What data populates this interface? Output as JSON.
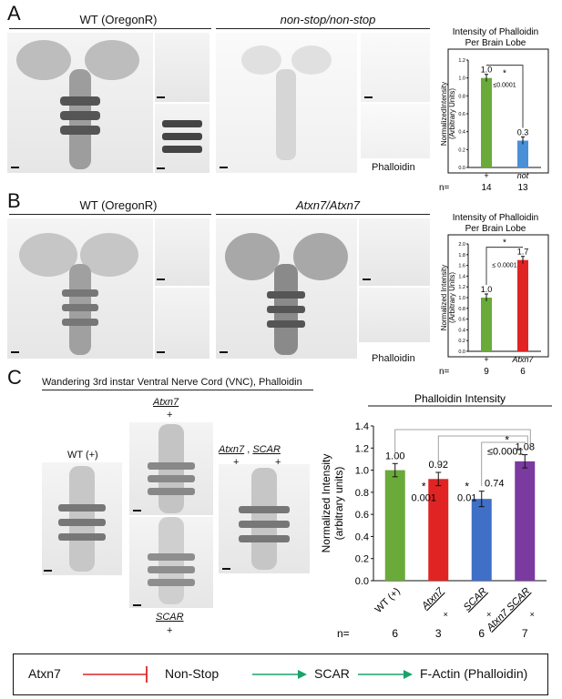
{
  "panels": {
    "A": {
      "letter": "A",
      "label_left": "WT (OregonR)",
      "label_right": "non-stop/non-stop",
      "stain": "Phalloidin"
    },
    "B": {
      "letter": "B",
      "label_left": "WT (OregonR)",
      "label_right": "Atxn7/Atxn7",
      "stain": "Phalloidin"
    },
    "C": {
      "letter": "C",
      "title": "Wandering 3rd instar Ventral Nerve Cord (VNC), Phalloidin",
      "wt_label": "WT (+)",
      "atxn7_top": "Atxn7",
      "atxn7_bottom": "+",
      "scar_top": "SCAR",
      "scar_bottom": "+",
      "double_a": "Atxn7",
      "double_comma": ",",
      "double_b": "SCAR",
      "double_a_bottom": "+",
      "double_b_bottom": "+"
    }
  },
  "legend": {
    "atxn7": "Atxn7",
    "nonstop": "Non-Stop",
    "scar": "SCAR",
    "factin": "F-Actin (Phalloidin)",
    "inhibit_color": "#e02424",
    "activate_color": "#1aa36b"
  },
  "chart_data": [
    {
      "type": "bar",
      "title_line1": "Intensity of Phalloidin",
      "title_line2": "Per Brain Lobe",
      "ylabel_line1": "NormalizedIntensity",
      "ylabel_line2": "(Arbitrary Units)",
      "ylim": [
        0,
        1.2
      ],
      "yticks": [
        "0.0",
        "0.2",
        "0.4",
        "0.6",
        "0.8",
        "1.0",
        "1.2"
      ],
      "categories": [
        "+",
        "not"
      ],
      "values": [
        1.0,
        0.3
      ],
      "value_labels": [
        "1.0",
        "0.3"
      ],
      "colors": [
        "#6aaa3a",
        "#4a90d9"
      ],
      "n_label": "n=",
      "n": [
        "14",
        "13"
      ],
      "sig_star": "*",
      "p_value": "≤0.0001"
    },
    {
      "type": "bar",
      "title_line1": "Intensity of Phalloidin",
      "title_line2": "Per Brain Lobe",
      "ylabel_line1": "Normalized Intensity",
      "ylabel_line2": "(Arbitrary Units)",
      "ylim": [
        0,
        2.0
      ],
      "yticks": [
        "0.0",
        "0.2",
        "0.4",
        "0.6",
        "0.8",
        "1.0",
        "1.2",
        "1.4",
        "1.6",
        "1.8",
        "2.0"
      ],
      "categories": [
        "+",
        "Atxn7"
      ],
      "values": [
        1.0,
        1.7
      ],
      "value_labels": [
        "1.0",
        "1.7"
      ],
      "colors": [
        "#6aaa3a",
        "#e02424"
      ],
      "n_label": "n=",
      "n": [
        "9",
        "6"
      ],
      "sig_star": "*",
      "p_value": "≤ 0.0001"
    },
    {
      "type": "bar",
      "title": "Phalloidin Intensity",
      "ylabel_line1": "Normalized Intensity",
      "ylabel_line2": "(arbitrary units)",
      "ylim": [
        0,
        1.4
      ],
      "yticks": [
        "0.0",
        "0.2",
        "0.4",
        "0.6",
        "0.8",
        "1.0",
        "1.2",
        "1.4"
      ],
      "categories": [
        "WT (+)",
        "Atxn7",
        "SCAR",
        "Atxn7 SCAR"
      ],
      "category_suffix": [
        "",
        "×",
        "×",
        "×"
      ],
      "values": [
        1.0,
        0.92,
        0.74,
        1.08
      ],
      "value_labels": [
        "1.00",
        "0.92",
        "0.74",
        "1.08"
      ],
      "colors": [
        "#6aaa3a",
        "#e02424",
        "#3f6fc6",
        "#7a3aa0"
      ],
      "n_label": "n=",
      "n": [
        "6",
        "3",
        "6",
        "7"
      ],
      "sig_star": "*",
      "p_values": [
        "0.001",
        "0.01",
        "≤0.0001"
      ]
    }
  ]
}
